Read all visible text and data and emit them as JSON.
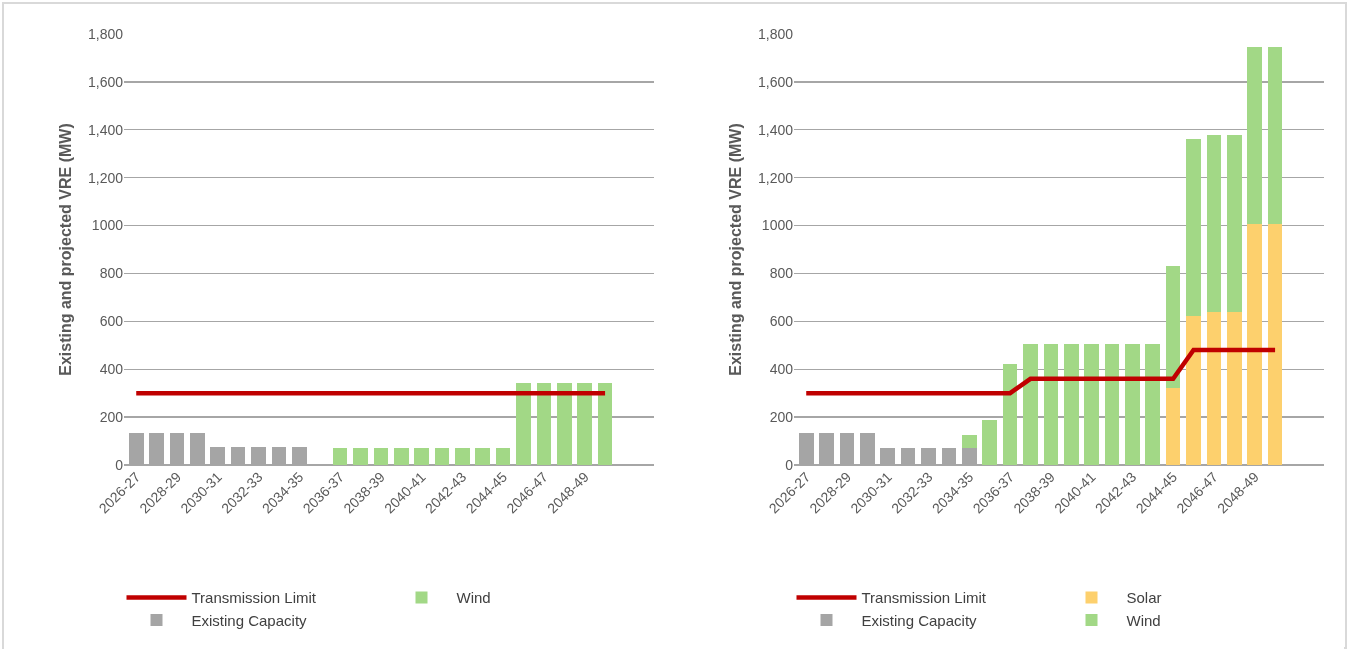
{
  "chart_data": [
    {
      "type": "bar",
      "stacked": true,
      "ylabel": "Existing and projected VRE (MW)",
      "categories": [
        "2026-27",
        null,
        "2028-29",
        null,
        "2030-31",
        null,
        "2032-33",
        null,
        "2034-35",
        null,
        "2036-37",
        null,
        "2038-39",
        null,
        "2040-41",
        null,
        "2042-43",
        null,
        "2044-45",
        null,
        "2046-47",
        null,
        "2048-49",
        null
      ],
      "series": [
        {
          "name": "Transmission Limit",
          "type": "line",
          "color": "#c00000",
          "line_style": "solid",
          "marker": "none",
          "values": [
            300,
            300,
            300,
            300,
            300,
            300,
            300,
            300,
            300,
            300,
            300,
            300,
            300,
            300,
            300,
            300,
            300,
            300,
            300,
            300,
            300,
            300,
            300,
            300
          ]
        },
        {
          "name": "Existing Capacity",
          "color": "#a5a5a5",
          "values": [
            133,
            133,
            133,
            133,
            74,
            74,
            74,
            74,
            74,
            null,
            null,
            null,
            null,
            null,
            null,
            null,
            null,
            null,
            null,
            null,
            null,
            null,
            null,
            null
          ]
        },
        {
          "name": "Wind",
          "color": "#a2d886",
          "values": [
            null,
            null,
            null,
            null,
            null,
            null,
            null,
            null,
            null,
            null,
            70,
            70,
            70,
            70,
            70,
            70,
            70,
            70,
            70,
            341,
            341,
            341,
            341,
            341
          ]
        }
      ],
      "ylim": [
        0,
        1800
      ],
      "yticks": [
        0,
        200,
        400,
        600,
        800,
        1000,
        {
          "value": 1200,
          "label": "1,200"
        },
        {
          "value": 1400,
          "label": "1,400"
        },
        {
          "value": 1600,
          "label": "1,600"
        },
        {
          "value": 1800,
          "label": "1,800"
        }
      ],
      "grid": "y",
      "legend": "bottom"
    },
    {
      "type": "bar",
      "stacked": true,
      "ylabel": "Existing and projected VRE (MW)",
      "categories": [
        "2026-27",
        null,
        "2028-29",
        null,
        "2030-31",
        null,
        "2032-33",
        null,
        "2034-35",
        null,
        "2036-37",
        null,
        "2038-39",
        null,
        "2040-41",
        null,
        "2042-43",
        null,
        "2044-45",
        null,
        "2046-47",
        null,
        "2048-49",
        null
      ],
      "series": [
        {
          "name": "Transmission Limit",
          "type": "line",
          "color": "#c00000",
          "line_style": "solid",
          "marker": "none",
          "values": [
            300,
            300,
            300,
            300,
            300,
            300,
            300,
            300,
            300,
            300,
            300,
            360,
            360,
            360,
            360,
            360,
            360,
            360,
            360,
            480,
            480,
            480,
            480,
            480
          ]
        },
        {
          "name": "Existing Capacity",
          "color": "#a5a5a5",
          "values": [
            135,
            135,
            135,
            135,
            73,
            73,
            73,
            73,
            73,
            null,
            null,
            null,
            null,
            null,
            null,
            null,
            null,
            null,
            null,
            null,
            null,
            null,
            null,
            null
          ]
        },
        {
          "name": "Solar",
          "color": "#fdd06d",
          "values": [
            null,
            null,
            null,
            null,
            null,
            null,
            null,
            null,
            null,
            null,
            null,
            null,
            null,
            null,
            null,
            null,
            null,
            null,
            322,
            622,
            640,
            640,
            1005,
            1005
          ]
        },
        {
          "name": "Wind",
          "color": "#a2d886",
          "values": [
            null,
            null,
            null,
            null,
            null,
            null,
            null,
            null,
            51,
            189,
            421,
            505,
            505,
            505,
            505,
            505,
            505,
            505,
            508,
            738,
            740,
            740,
            740,
            740
          ]
        }
      ],
      "ylim": [
        0,
        1800
      ],
      "yticks": [
        0,
        200,
        400,
        600,
        800,
        1000,
        {
          "value": 1200,
          "label": "1,200"
        },
        {
          "value": 1400,
          "label": "1,400"
        },
        {
          "value": 1600,
          "label": "1,600"
        },
        {
          "value": 1800,
          "label": "1,800"
        }
      ],
      "grid": "y",
      "legend": "bottom"
    }
  ]
}
